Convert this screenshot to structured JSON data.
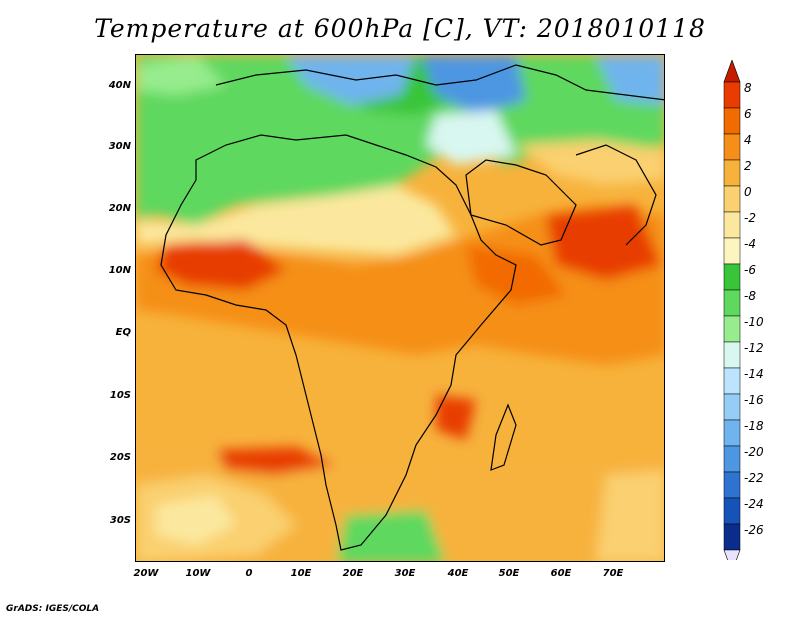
{
  "title": "Temperature at 600hPa [C], VT: 2018010118",
  "credit": "GrADS: IGES/COLA",
  "map": {
    "lat_labels": [
      "40N",
      "30N",
      "20N",
      "10N",
      "EQ",
      "10S",
      "20S",
      "30S"
    ],
    "lat_values": [
      40,
      30,
      20,
      10,
      0,
      -10,
      -20,
      -30
    ],
    "lon_labels": [
      "20W",
      "10W",
      "0",
      "10E",
      "20E",
      "30E",
      "40E",
      "50E",
      "60E",
      "70E"
    ],
    "lon_values": [
      -20,
      -10,
      0,
      10,
      20,
      30,
      40,
      50,
      60,
      70
    ],
    "lon_range": [
      -22,
      80
    ],
    "lat_range": [
      -37,
      45
    ]
  },
  "colorbar": {
    "labels": [
      "8",
      "6",
      "4",
      "2",
      "0",
      "-2",
      "-4",
      "-6",
      "-8",
      "-10",
      "-12",
      "-14",
      "-16",
      "-18",
      "-20",
      "-22",
      "-24",
      "-26"
    ],
    "colors": [
      "#c41a00",
      "#e83c00",
      "#f26b00",
      "#f58f19",
      "#f7b23c",
      "#fad070",
      "#fbe89e",
      "#fcf5c0",
      "#39c539",
      "#5fd85f",
      "#97ec8d",
      "#d8f7f0",
      "#bde4ff",
      "#95cdf7",
      "#6fb4ee",
      "#4d96e2",
      "#2e73d0",
      "#1553b8",
      "#0a2c8a",
      "#0a156a"
    ]
  }
}
